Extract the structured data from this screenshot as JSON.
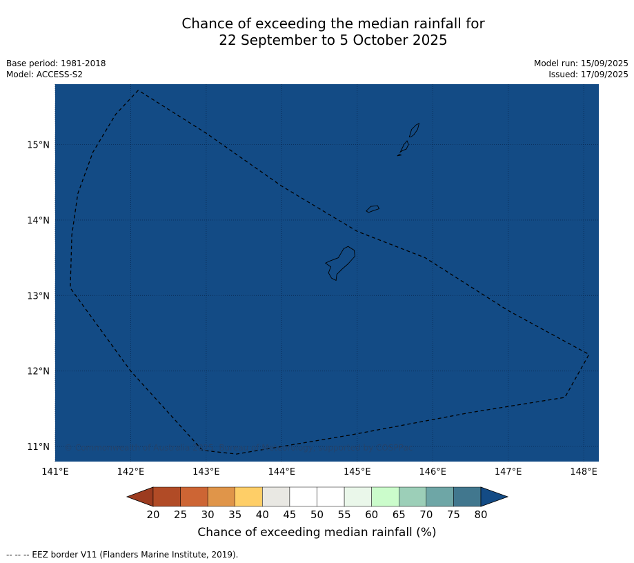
{
  "title": {
    "line1": "Chance of exceeding the median rainfall for",
    "line2": "22 September to 5 October 2025"
  },
  "meta": {
    "base_period": "Base period: 1981-2018",
    "model": "Model: ACCESS-S2",
    "model_run": "Model run: 15/09/2025",
    "issued": "Issued: 17/09/2025"
  },
  "map": {
    "region_value_percent": 80,
    "fill_color": "#134b85",
    "lon_ticks": [
      "141°E",
      "142°E",
      "143°E",
      "144°E",
      "145°E",
      "146°E",
      "147°E",
      "148°E"
    ],
    "lat_ticks": [
      "15°N",
      "14°N",
      "13°N",
      "12°N",
      "11°N"
    ],
    "lon_range": [
      141.0,
      148.2
    ],
    "lat_range": [
      10.8,
      15.8
    ],
    "copyright": "© Commonwealth of Australia 2025, Bureau of Meteorology, supported by COSPPac",
    "eez_border": [
      [
        142.1,
        15.72
      ],
      [
        141.8,
        15.4
      ],
      [
        141.5,
        14.9
      ],
      [
        141.3,
        14.35
      ],
      [
        141.22,
        13.8
      ],
      [
        141.2,
        13.1
      ],
      [
        142.0,
        12.0
      ],
      [
        142.95,
        10.95
      ],
      [
        143.4,
        10.9
      ],
      [
        144.9,
        11.15
      ],
      [
        146.5,
        11.45
      ],
      [
        147.75,
        11.65
      ],
      [
        148.07,
        12.22
      ],
      [
        147.0,
        12.8
      ],
      [
        145.9,
        13.5
      ],
      [
        145.0,
        13.85
      ],
      [
        144.0,
        14.45
      ],
      [
        143.0,
        15.15
      ],
      [
        142.1,
        15.72
      ]
    ],
    "islands": [
      {
        "name": "Guam",
        "outline": [
          [
            144.62,
            13.45
          ],
          [
            144.75,
            13.5
          ],
          [
            144.82,
            13.62
          ],
          [
            144.88,
            13.65
          ],
          [
            144.96,
            13.6
          ],
          [
            144.97,
            13.52
          ],
          [
            144.88,
            13.42
          ],
          [
            144.8,
            13.35
          ],
          [
            144.73,
            13.28
          ],
          [
            144.72,
            13.2
          ],
          [
            144.66,
            13.23
          ],
          [
            144.62,
            13.3
          ],
          [
            144.65,
            13.38
          ],
          [
            144.58,
            13.43
          ],
          [
            144.62,
            13.45
          ]
        ]
      },
      {
        "name": "Rota",
        "outline": [
          [
            145.12,
            14.12
          ],
          [
            145.18,
            14.18
          ],
          [
            145.27,
            14.19
          ],
          [
            145.29,
            14.15
          ],
          [
            145.2,
            14.12
          ],
          [
            145.15,
            14.1
          ],
          [
            145.12,
            14.12
          ]
        ]
      },
      {
        "name": "Tinian",
        "outline": [
          [
            145.57,
            14.9
          ],
          [
            145.62,
            15.0
          ],
          [
            145.66,
            15.05
          ],
          [
            145.68,
            15.0
          ],
          [
            145.65,
            14.94
          ],
          [
            145.6,
            14.92
          ],
          [
            145.57,
            14.9
          ]
        ]
      },
      {
        "name": "Saipan",
        "outline": [
          [
            145.69,
            15.1
          ],
          [
            145.72,
            15.2
          ],
          [
            145.78,
            15.26
          ],
          [
            145.82,
            15.28
          ],
          [
            145.8,
            15.2
          ],
          [
            145.75,
            15.13
          ],
          [
            145.71,
            15.1
          ],
          [
            145.69,
            15.1
          ]
        ]
      },
      {
        "name": "Aguijan",
        "outline": [
          [
            145.53,
            14.85
          ],
          [
            145.56,
            14.87
          ],
          [
            145.58,
            14.86
          ],
          [
            145.53,
            14.85
          ]
        ]
      }
    ]
  },
  "colorbar": {
    "label": "Chance of exceeding median rainfall (%)",
    "ticks": [
      "20",
      "25",
      "30",
      "35",
      "40",
      "45",
      "50",
      "55",
      "60",
      "65",
      "70",
      "75",
      "80"
    ],
    "under_color": "#9c3b1f",
    "over_color": "#134b85",
    "colors": [
      "#b14b26",
      "#cd6534",
      "#e09549",
      "#fece67",
      "#e9e8e3",
      "#ffffff",
      "#ffffff",
      "#eaf7ea",
      "#cbfccb",
      "#9ccfb8",
      "#6ea6a6",
      "#41778e"
    ]
  },
  "footnote": "--  --  -- EEZ border V11 (Flanders Marine Institute, 2019)."
}
